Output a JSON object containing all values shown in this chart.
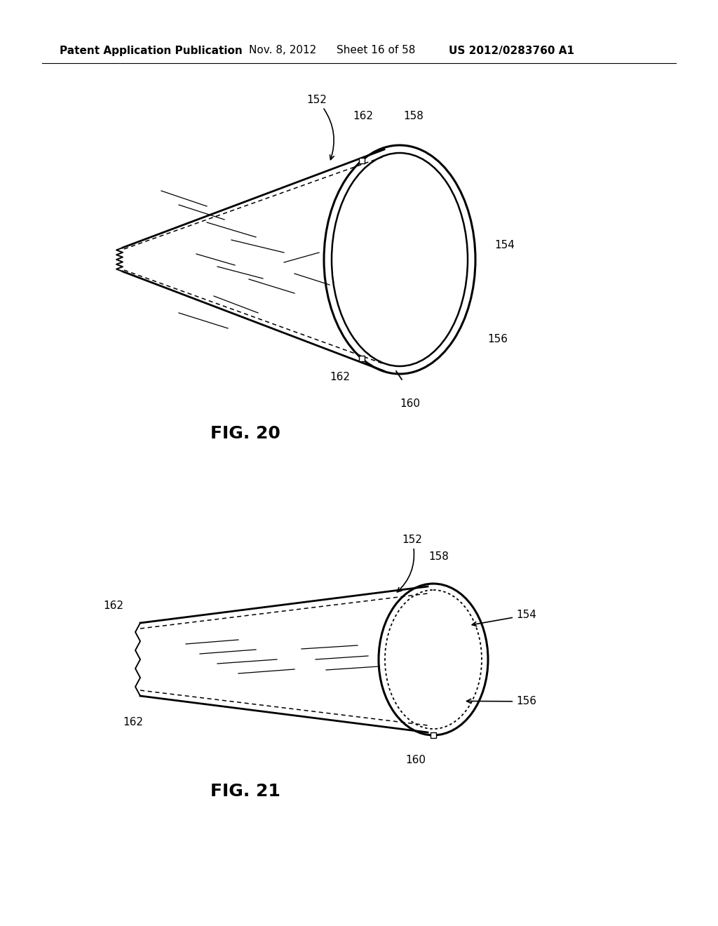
{
  "background_color": "#ffffff",
  "header_text": "Patent Application Publication",
  "header_date": "Nov. 8, 2012",
  "header_sheet": "Sheet 16 of 58",
  "header_patent": "US 2012/0283760 A1",
  "fig20_label": "FIG. 20",
  "fig21_label": "FIG. 21",
  "line_color": "#000000",
  "annotation_color": "#000000",
  "font_size_header": 11,
  "font_size_fig": 18,
  "font_size_label": 11
}
